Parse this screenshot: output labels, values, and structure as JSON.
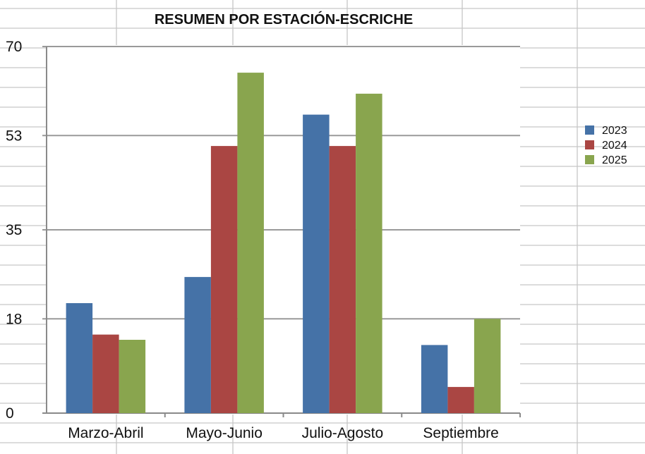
{
  "chart_data": {
    "type": "bar",
    "title": "RESUMEN POR ESTACIÓN-ESCRICHE",
    "categories": [
      "Marzo-Abril",
      "Mayo-Junio",
      "Julio-Agosto",
      "Septiembre"
    ],
    "series": [
      {
        "name": "2023",
        "color": "#4572a7",
        "values": [
          21,
          26,
          57,
          13
        ]
      },
      {
        "name": "2024",
        "color": "#aa4643",
        "values": [
          15,
          51,
          51,
          5
        ]
      },
      {
        "name": "2025",
        "color": "#89a54e",
        "values": [
          14,
          65,
          61,
          18
        ]
      }
    ],
    "yticks": [
      "0",
      "18",
      "35",
      "53",
      "70"
    ],
    "ylim": [
      0,
      70
    ],
    "xlabel": "",
    "ylabel": "",
    "grid": true,
    "legend_position": "right"
  }
}
